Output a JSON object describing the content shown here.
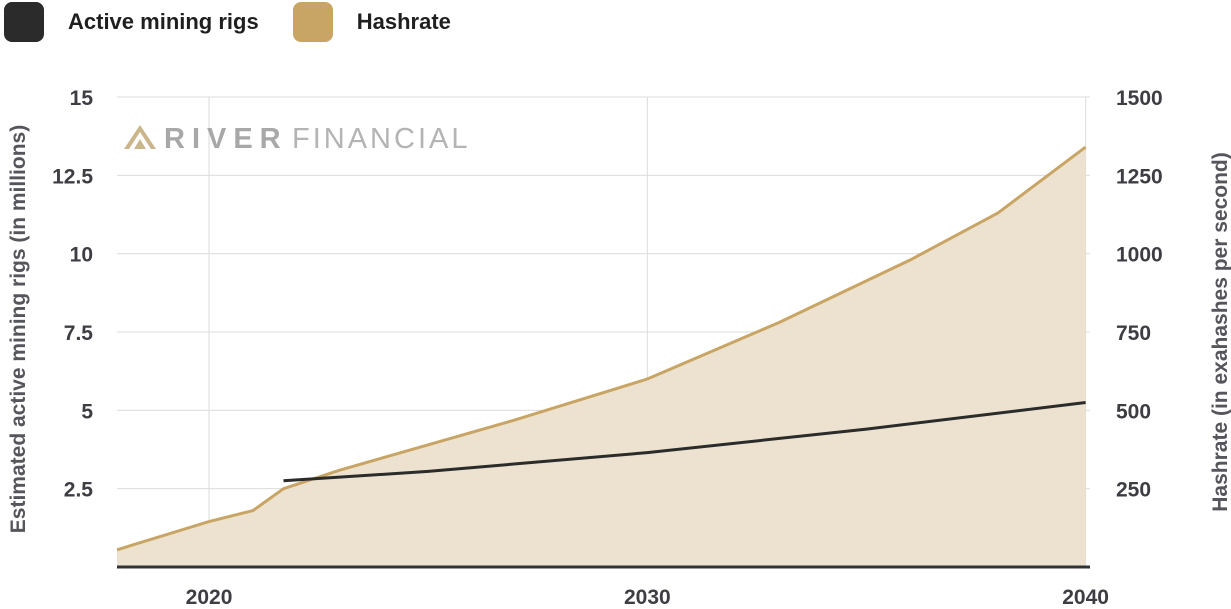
{
  "legend": [
    {
      "label": "Active mining rigs",
      "color": "#2b2b2b"
    },
    {
      "label": "Hashrate",
      "color": "#c9a565"
    }
  ],
  "watermark": {
    "bold": "RIVER",
    "light": "FINANCIAL"
  },
  "chart_data": {
    "type": "area",
    "xlabel": "",
    "x_ticks": [
      2020,
      2030,
      2040
    ],
    "xlim": [
      2017.9,
      2040.1
    ],
    "grid": true,
    "legend_position": "top-left",
    "left_axis": {
      "label": "Estimated active mining rigs (in millions)",
      "ylim": [
        0,
        15
      ],
      "ticks": [
        2.5,
        5,
        7.5,
        10,
        12.5,
        15
      ],
      "tick_labels": [
        "2.5",
        "5",
        "7.5",
        "10",
        "12.5",
        "15"
      ]
    },
    "right_axis": {
      "label": "Hashrate (in exahashes per second)",
      "ylim": [
        0,
        1500
      ],
      "ticks": [
        250,
        500,
        750,
        1000,
        1250,
        1500
      ],
      "tick_labels": [
        "250",
        "500",
        "750",
        "1000",
        "1250",
        "1500"
      ]
    },
    "series": [
      {
        "name": "Hashrate",
        "kind": "area",
        "axis": "right",
        "color": "#c9a565",
        "fill": "#ede2cf",
        "x": [
          2017.9,
          2020,
          2021,
          2021.7,
          2023,
          2025,
          2027,
          2030,
          2033,
          2036,
          2038,
          2040
        ],
        "y": [
          55,
          145,
          180,
          250,
          310,
          390,
          470,
          600,
          780,
          980,
          1130,
          1340
        ]
      },
      {
        "name": "Active mining rigs",
        "kind": "line",
        "axis": "left",
        "color": "#2b2b2b",
        "x": [
          2021.7,
          2025,
          2030,
          2035,
          2040
        ],
        "y": [
          2.75,
          3.05,
          3.65,
          4.4,
          5.25
        ]
      }
    ]
  }
}
